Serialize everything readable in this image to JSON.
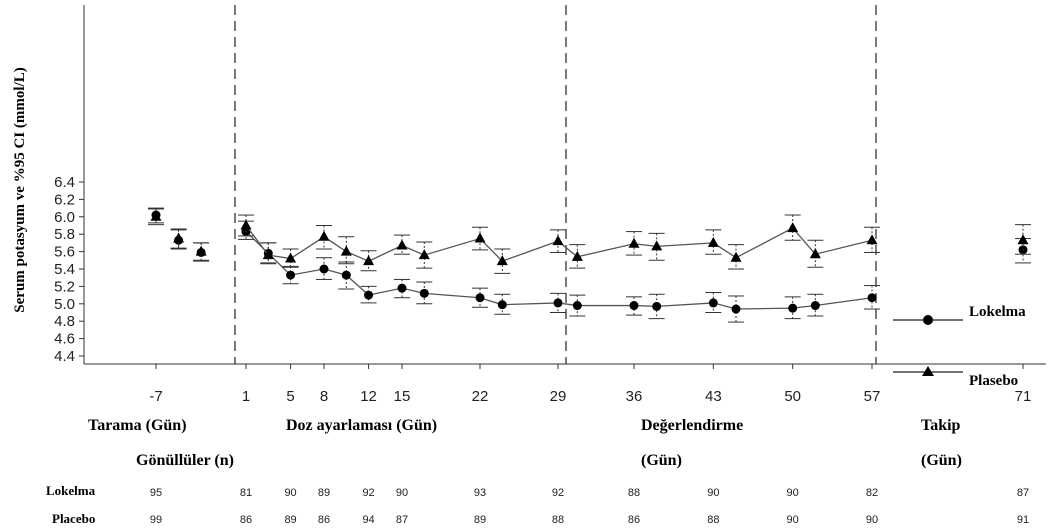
{
  "chart_data": {
    "type": "line",
    "ylabel": "Serum potasyum ve %95 CI (mmol/L)",
    "xlabel": "",
    "ylim": [
      4.4,
      6.4
    ],
    "yticks": [
      "4.4",
      "4.6",
      "4.8",
      "5.0",
      "5.2",
      "5.4",
      "5.6",
      "5.8",
      "6.0",
      "6.2",
      "6.4"
    ],
    "xticks": [
      "-7",
      "1",
      "5",
      "8",
      "12",
      "15",
      "22",
      "29",
      "36",
      "43",
      "50",
      "57",
      "71"
    ],
    "legend_position": "bottom-right",
    "series": [
      {
        "name": "Lokelma",
        "marker": "circle",
        "x": [
          -7,
          -5,
          -3,
          1,
          3,
          5,
          8,
          10,
          12,
          15,
          17,
          22,
          24,
          29,
          31,
          36,
          38,
          43,
          45,
          50,
          52,
          57,
          71
        ],
        "y": [
          6.02,
          5.73,
          5.59,
          5.83,
          5.58,
          5.33,
          5.4,
          5.33,
          5.1,
          5.18,
          5.12,
          5.07,
          4.99,
          5.01,
          4.98,
          4.98,
          4.97,
          5.01,
          4.94,
          4.95,
          4.98,
          5.07,
          5.62
        ],
        "ci_low": [
          5.93,
          5.63,
          5.5,
          5.74,
          5.47,
          5.23,
          5.28,
          5.17,
          5.01,
          5.07,
          5.0,
          4.96,
          4.88,
          4.9,
          4.86,
          4.87,
          4.83,
          4.9,
          4.79,
          4.83,
          4.86,
          4.94,
          5.47
        ],
        "ci_high": [
          6.1,
          5.85,
          5.7,
          5.95,
          5.7,
          5.43,
          5.53,
          5.48,
          5.2,
          5.28,
          5.25,
          5.18,
          5.11,
          5.12,
          5.1,
          5.08,
          5.11,
          5.13,
          5.09,
          5.08,
          5.11,
          5.21,
          5.75
        ]
      },
      {
        "name": "Plasebo",
        "marker": "triangle",
        "x": [
          -7,
          -5,
          -3,
          1,
          3,
          5,
          8,
          10,
          12,
          15,
          17,
          22,
          24,
          29,
          31,
          36,
          38,
          43,
          45,
          50,
          52,
          57,
          71
        ],
        "y": [
          6.0,
          5.75,
          5.6,
          5.9,
          5.56,
          5.52,
          5.77,
          5.6,
          5.49,
          5.67,
          5.56,
          5.75,
          5.49,
          5.72,
          5.54,
          5.69,
          5.66,
          5.7,
          5.53,
          5.87,
          5.57,
          5.73,
          5.73
        ],
        "ci_low": [
          5.91,
          5.64,
          5.49,
          5.78,
          5.46,
          5.42,
          5.63,
          5.46,
          5.38,
          5.57,
          5.41,
          5.62,
          5.35,
          5.59,
          5.41,
          5.56,
          5.5,
          5.57,
          5.4,
          5.73,
          5.42,
          5.59,
          5.57
        ],
        "ci_high": [
          6.09,
          5.86,
          5.7,
          6.02,
          5.7,
          5.63,
          5.9,
          5.77,
          5.61,
          5.79,
          5.71,
          5.88,
          5.63,
          5.85,
          5.68,
          5.83,
          5.81,
          5.85,
          5.68,
          6.02,
          5.73,
          5.88,
          5.91
        ]
      }
    ],
    "phase_dividers_x": [
      0,
      30,
      60
    ],
    "phases": [
      {
        "label": "Tarama (Gün)"
      },
      {
        "label": "Doz ayarlaması (Gün)"
      },
      {
        "label": "Değerlendirme"
      },
      {
        "label": "(Gün)"
      },
      {
        "label": "Takip"
      },
      {
        "label": "(Gün)"
      }
    ],
    "volunteers_label": "Gönüllüler (n)",
    "counts": {
      "lokelma_label": "Lokelma",
      "placebo_label": "Placebo",
      "lokelma": [
        {
          "x": -7,
          "n": "95"
        },
        {
          "x": 1,
          "n": "81"
        },
        {
          "x": 5,
          "n": "90"
        },
        {
          "x": 8,
          "n": "89"
        },
        {
          "x": 12,
          "n": "92"
        },
        {
          "x": 15,
          "n": "90"
        },
        {
          "x": 22,
          "n": "93"
        },
        {
          "x": 29,
          "n": "92"
        },
        {
          "x": 36,
          "n": "88"
        },
        {
          "x": 43,
          "n": "90"
        },
        {
          "x": 50,
          "n": "90"
        },
        {
          "x": 57,
          "n": "82"
        },
        {
          "x": 71,
          "n": "87"
        }
      ],
      "placebo": [
        {
          "x": -7,
          "n": "99"
        },
        {
          "x": 1,
          "n": "86"
        },
        {
          "x": 5,
          "n": "89"
        },
        {
          "x": 8,
          "n": "86"
        },
        {
          "x": 12,
          "n": "94"
        },
        {
          "x": 15,
          "n": "87"
        },
        {
          "x": 22,
          "n": "89"
        },
        {
          "x": 29,
          "n": "88"
        },
        {
          "x": 36,
          "n": "86"
        },
        {
          "x": 43,
          "n": "88"
        },
        {
          "x": 50,
          "n": "90"
        },
        {
          "x": 57,
          "n": "90"
        },
        {
          "x": 71,
          "n": "91"
        }
      ]
    }
  }
}
